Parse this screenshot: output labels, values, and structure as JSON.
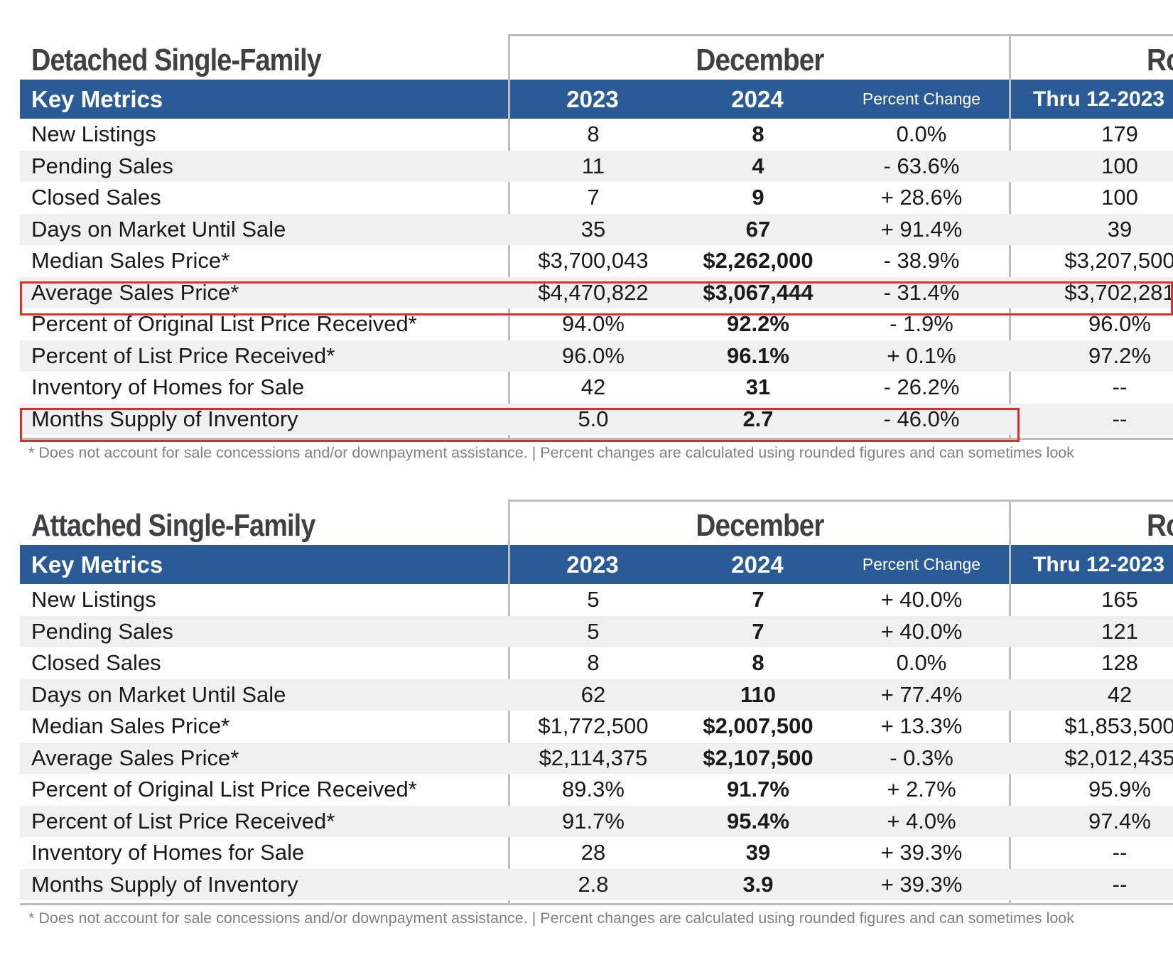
{
  "sections": [
    {
      "title": "Detached Single-Family",
      "month_group": "December",
      "ytd_group": "Ro",
      "headers": {
        "key_metrics": "Key Metrics",
        "year1": "2023",
        "year2": "2024",
        "pct_change": "Percent Change",
        "ytd": "Thru 12-2023"
      },
      "rows": [
        {
          "label": "New Listings",
          "v2023": "8",
          "v2024": "8",
          "pct": "0.0%",
          "ytd": "179"
        },
        {
          "label": "Pending Sales",
          "v2023": "11",
          "v2024": "4",
          "pct": "- 63.6%",
          "ytd": "100"
        },
        {
          "label": "Closed Sales",
          "v2023": "7",
          "v2024": "9",
          "pct": "+ 28.6%",
          "ytd": "100"
        },
        {
          "label": "Days on Market Until Sale",
          "v2023": "35",
          "v2024": "67",
          "pct": "+ 91.4%",
          "ytd": "39"
        },
        {
          "label": "Median Sales Price*",
          "v2023": "$3,700,043",
          "v2024": "$2,262,000",
          "pct": "- 38.9%",
          "ytd": "$3,207,500"
        },
        {
          "label": "Average Sales Price*",
          "v2023": "$4,470,822",
          "v2024": "$3,067,444",
          "pct": "- 31.4%",
          "ytd": "$3,702,281"
        },
        {
          "label": "Percent of Original List Price Received*",
          "v2023": "94.0%",
          "v2024": "92.2%",
          "pct": "- 1.9%",
          "ytd": "96.0%"
        },
        {
          "label": "Percent of List Price Received*",
          "v2023": "96.0%",
          "v2024": "96.1%",
          "pct": "+ 0.1%",
          "ytd": "97.2%"
        },
        {
          "label": "Inventory of Homes for Sale",
          "v2023": "42",
          "v2024": "31",
          "pct": "- 26.2%",
          "ytd": "--"
        },
        {
          "label": "Months Supply of Inventory",
          "v2023": "5.0",
          "v2024": "2.7",
          "pct": "- 46.0%",
          "ytd": "--"
        }
      ],
      "footnote": "* Does not account for sale concessions and/or downpayment assistance.  |  Percent changes are calculated using rounded figures and can sometimes look"
    },
    {
      "title": "Attached Single-Family",
      "month_group": "December",
      "ytd_group": "Ro",
      "headers": {
        "key_metrics": "Key Metrics",
        "year1": "2023",
        "year2": "2024",
        "pct_change": "Percent Change",
        "ytd": "Thru 12-2023"
      },
      "rows": [
        {
          "label": "New Listings",
          "v2023": "5",
          "v2024": "7",
          "pct": "+ 40.0%",
          "ytd": "165"
        },
        {
          "label": "Pending Sales",
          "v2023": "5",
          "v2024": "7",
          "pct": "+ 40.0%",
          "ytd": "121"
        },
        {
          "label": "Closed Sales",
          "v2023": "8",
          "v2024": "8",
          "pct": "0.0%",
          "ytd": "128"
        },
        {
          "label": "Days on Market Until Sale",
          "v2023": "62",
          "v2024": "110",
          "pct": "+ 77.4%",
          "ytd": "42"
        },
        {
          "label": "Median Sales Price*",
          "v2023": "$1,772,500",
          "v2024": "$2,007,500",
          "pct": "+ 13.3%",
          "ytd": "$1,853,500"
        },
        {
          "label": "Average Sales Price*",
          "v2023": "$2,114,375",
          "v2024": "$2,107,500",
          "pct": "- 0.3%",
          "ytd": "$2,012,435"
        },
        {
          "label": "Percent of Original List Price Received*",
          "v2023": "89.3%",
          "v2024": "91.7%",
          "pct": "+ 2.7%",
          "ytd": "95.9%"
        },
        {
          "label": "Percent of List Price Received*",
          "v2023": "91.7%",
          "v2024": "95.4%",
          "pct": "+ 4.0%",
          "ytd": "97.4%"
        },
        {
          "label": "Inventory of Homes for Sale",
          "v2023": "28",
          "v2024": "39",
          "pct": "+ 39.3%",
          "ytd": "--"
        },
        {
          "label": "Months Supply of Inventory",
          "v2023": "2.8",
          "v2024": "3.9",
          "pct": "+ 39.3%",
          "ytd": "--"
        }
      ],
      "footnote": "* Does not account for sale concessions and/or downpayment assistance.  |  Percent changes are calculated using rounded figures and can sometimes look"
    }
  ],
  "highlight_color": "#d9302c",
  "header_color": "#2a5b96"
}
